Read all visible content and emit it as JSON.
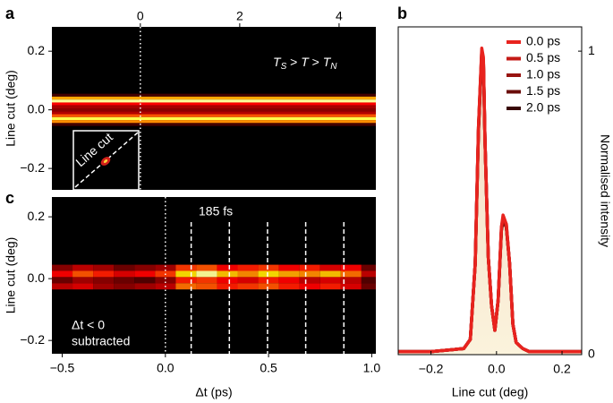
{
  "chart_data": [
    {
      "type": "heatmap",
      "panel": "a",
      "ylabel": "Line cut (deg)",
      "annotation": [
        "T",
        "S",
        " > ",
        "T",
        " > ",
        "T",
        "N"
      ],
      "inset_label": "Line cut",
      "xlim": [
        -1.78,
        4.74
      ],
      "xticks": [
        0,
        2,
        4
      ],
      "ylim": [
        -0.273,
        0.283
      ],
      "yticks": [
        {
          "value": 0.2,
          "label": "0.2"
        },
        {
          "value": 0,
          "label": "0.0"
        },
        {
          "value": -0.2,
          "label": "−0.2"
        }
      ],
      "reference_line": 0,
      "rows": [
        0.05,
        0.04,
        0.03,
        0.02,
        0.01,
        0,
        -0.01,
        -0.02,
        -0.03,
        -0.04,
        -0.05
      ],
      "values": [
        0.12,
        0.75,
        0.95,
        0.45,
        0.3,
        0.25,
        0.32,
        0.6,
        0.9,
        0.7,
        0.12
      ]
    },
    {
      "type": "heatmap_grid",
      "panel": "c",
      "ylabel": "Line cut (deg)",
      "xlabel": "Δt (ps)",
      "annotation": "185 fs",
      "note": [
        "Δt < 0",
        "subtracted"
      ],
      "xlim": [
        -0.55,
        1.02
      ],
      "xticks": [
        {
          "value": -0.5,
          "label": "−0.5"
        },
        {
          "value": 0,
          "label": "0.0"
        },
        0.5,
        {
          "value": 1,
          "label": "1.0"
        }
      ],
      "ylim": [
        -0.243,
        0.264
      ],
      "yticks": [
        {
          "value": 0.2,
          "label": "0.2"
        },
        {
          "value": 0,
          "label": "0.0"
        },
        {
          "value": -0.2,
          "label": "−0.2"
        }
      ],
      "reference_line": 0,
      "dashed_lines": [
        0.125,
        0.31,
        0.495,
        0.68,
        0.865
      ],
      "x": [
        -0.5,
        -0.4,
        -0.3,
        -0.2,
        -0.1,
        0,
        0.1,
        0.2,
        0.3,
        0.4,
        0.5,
        0.6,
        0.7,
        0.8,
        0.9,
        1.0
      ],
      "rows": [
        0.035,
        0.015,
        -0.005,
        -0.025
      ],
      "values": [
        [
          0.25,
          0.35,
          0.3,
          0.2,
          0.25,
          0.3,
          0.55,
          0.6,
          0.45,
          0.5,
          0.55,
          0.45,
          0.5,
          0.4,
          0.45,
          0.2
        ],
        [
          0.45,
          0.6,
          0.5,
          0.4,
          0.45,
          0.55,
          0.85,
          0.95,
          0.8,
          0.7,
          0.85,
          0.75,
          0.7,
          0.8,
          0.65,
          0.35
        ],
        [
          0.2,
          0.3,
          0.25,
          0.2,
          0.15,
          0.25,
          0.5,
          0.55,
          0.45,
          0.4,
          0.5,
          0.45,
          0.35,
          0.4,
          0.35,
          0.15
        ],
        [
          0.35,
          0.4,
          0.3,
          0.25,
          0.3,
          0.35,
          0.65,
          0.6,
          0.5,
          0.55,
          0.6,
          0.5,
          0.45,
          0.5,
          0.4,
          0.2
        ]
      ]
    },
    {
      "type": "line",
      "panel": "b",
      "xlabel": "Line cut (deg)",
      "ylabel": "Normalised intensity",
      "xlim": [
        -0.3,
        0.26
      ],
      "xticks": [
        {
          "value": -0.2,
          "label": "−0.2"
        },
        {
          "value": 0,
          "label": "0.0"
        },
        0.2
      ],
      "ylim": [
        0,
        1.08
      ],
      "yticks": [
        0,
        1
      ],
      "x": [
        -0.3,
        -0.2,
        -0.1,
        -0.08,
        -0.065,
        -0.055,
        -0.045,
        -0.04,
        -0.035,
        -0.025,
        -0.015,
        -0.005,
        0.005,
        0.015,
        0.02,
        0.03,
        0.04,
        0.05,
        0.06,
        0.08,
        0.1,
        0.2,
        0.26
      ],
      "series": [
        {
          "name": "0.0 ps",
          "color": "#e8231e",
          "values": [
            0.01,
            0.01,
            0.02,
            0.05,
            0.3,
            0.75,
            1.01,
            0.98,
            0.7,
            0.32,
            0.16,
            0.08,
            0.18,
            0.42,
            0.46,
            0.43,
            0.3,
            0.1,
            0.04,
            0.02,
            0.01,
            0.01,
            0.01
          ]
        },
        {
          "name": "0.5 ps",
          "color": "#c41a16",
          "values": [
            0.01,
            0.01,
            0.02,
            0.05,
            0.3,
            0.75,
            1.0,
            0.97,
            0.7,
            0.32,
            0.16,
            0.08,
            0.18,
            0.42,
            0.45,
            0.43,
            0.3,
            0.1,
            0.04,
            0.02,
            0.01,
            0.01,
            0.01
          ]
        },
        {
          "name": "1.0 ps",
          "color": "#981310",
          "values": [
            0.01,
            0.01,
            0.02,
            0.05,
            0.3,
            0.75,
            1.0,
            0.97,
            0.7,
            0.32,
            0.16,
            0.08,
            0.18,
            0.41,
            0.45,
            0.42,
            0.3,
            0.1,
            0.04,
            0.02,
            0.01,
            0.01,
            0.01
          ]
        },
        {
          "name": "1.5 ps",
          "color": "#6a0c0a",
          "values": [
            0.01,
            0.01,
            0.02,
            0.05,
            0.3,
            0.74,
            0.99,
            0.97,
            0.7,
            0.32,
            0.16,
            0.08,
            0.18,
            0.41,
            0.45,
            0.42,
            0.3,
            0.1,
            0.04,
            0.02,
            0.01,
            0.01,
            0.01
          ]
        },
        {
          "name": "2.0 ps",
          "color": "#380605",
          "values": [
            0.01,
            0.01,
            0.02,
            0.05,
            0.3,
            0.74,
            0.99,
            0.96,
            0.7,
            0.32,
            0.16,
            0.08,
            0.18,
            0.41,
            0.44,
            0.42,
            0.3,
            0.1,
            0.04,
            0.02,
            0.01,
            0.01,
            0.01
          ]
        }
      ]
    }
  ]
}
